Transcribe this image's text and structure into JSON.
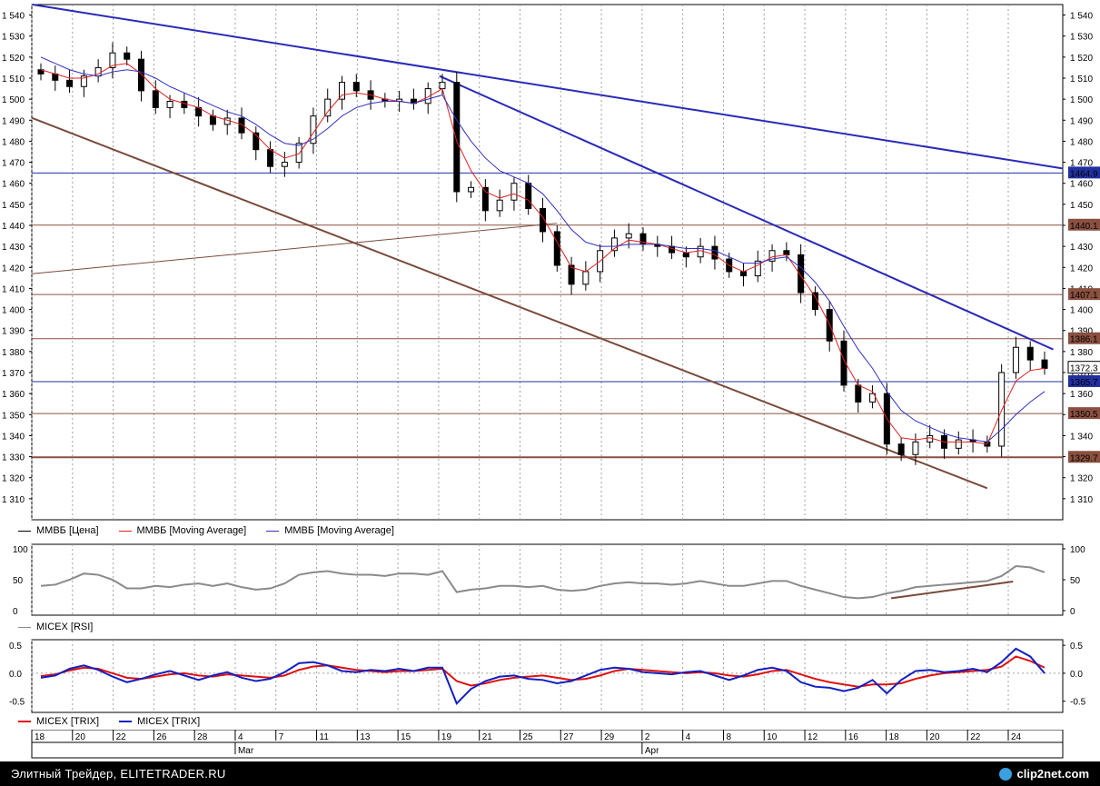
{
  "colors": {
    "price": "#000000",
    "ma_fast": "#e02020",
    "ma_slow": "#3030c0",
    "trend_blue": "#2a2ab8",
    "trend_brown": "#7a4a3a",
    "hline_blue": "#2030a0",
    "hline_brown": "#8a5040",
    "rsi": "#8a8a8a",
    "trix_red": "#e01010",
    "trix_blue": "#1020c0",
    "grid": "#a0a0a0"
  },
  "price_panel": {
    "legend": [
      {
        "label": "ММВБ [Цена]",
        "color": "#000000"
      },
      {
        "label": "ММВБ [Moving Average]",
        "color": "#e02020"
      },
      {
        "label": "ММВБ [Moving Average]",
        "color": "#3030c0"
      }
    ],
    "y_ticks": [
      "1 540",
      "1 530",
      "1 520",
      "1 510",
      "1 500",
      "1 490",
      "1 480",
      "1 470",
      "1 460",
      "1 450",
      "1 440",
      "1 430",
      "1 420",
      "1 410",
      "1 400",
      "1 390",
      "1 380",
      "1 370",
      "1 360",
      "1 350",
      "1 340",
      "1 330",
      "1 320",
      "1 310"
    ],
    "level_labels": [
      "1464.9",
      "1440.1",
      "1407.1",
      "1386.1",
      "1372.3",
      "1365.7",
      "1350.5",
      "1329.7"
    ]
  },
  "rsi_panel": {
    "legend": "MICEX [RSI]",
    "y_ticks": [
      "100",
      "50",
      "0"
    ]
  },
  "trix_panel": {
    "legend": [
      "MICEX [TRIX]",
      "MICEX [TRIX]"
    ],
    "y_ticks": [
      "0.5",
      "0.0",
      "-0.5"
    ]
  },
  "x_axis": {
    "day_labels": [
      "18",
      "20",
      "22",
      "26",
      "28",
      "4",
      "7",
      "11",
      "13",
      "15",
      "19",
      "21",
      "25",
      "27",
      "29",
      "2",
      "4",
      "8",
      "10",
      "12",
      "16",
      "18",
      "20",
      "22",
      "24"
    ],
    "month_labels": [
      "Mar",
      "Apr"
    ]
  },
  "footer": {
    "credit": "Элитный Трейдер, ELITETRADER.RU",
    "logo": "clip2net.com"
  },
  "chart_data": [
    {
      "type": "candlestick",
      "title": "",
      "ylim": [
        1300,
        1545
      ],
      "x_labels": [
        "18",
        "20",
        "22",
        "26",
        "28",
        "4",
        "7",
        "11",
        "13",
        "15",
        "19",
        "21",
        "25",
        "27",
        "29",
        "2",
        "4",
        "8",
        "10",
        "12",
        "16",
        "18",
        "20",
        "22",
        "24"
      ],
      "months": [
        "Mar",
        "Apr"
      ],
      "series": [
        {
          "name": "ММВБ [Цена]",
          "values": [
            1512,
            1509,
            1506,
            1511,
            1515,
            1522,
            1519,
            1504,
            1496,
            1499,
            1496,
            1492,
            1488,
            1491,
            1484,
            1476,
            1468,
            1470,
            1479,
            1492,
            1500,
            1508,
            1504,
            1500,
            1499,
            1500,
            1498,
            1505,
            1508,
            1456,
            1458,
            1447,
            1452,
            1460,
            1448,
            1437,
            1421,
            1412,
            1418,
            1428,
            1434,
            1436,
            1431,
            1430,
            1427,
            1425,
            1430,
            1424,
            1418,
            1416,
            1423,
            1428,
            1426,
            1408,
            1400,
            1385,
            1364,
            1356,
            1360,
            1336,
            1331,
            1337,
            1340,
            1334,
            1338,
            1337,
            1335,
            1370,
            1382,
            1376,
            1372
          ]
        },
        {
          "name": "ММВБ [Moving Average]",
          "values": [
            1514,
            1512,
            1510,
            1510,
            1512,
            1516,
            1517,
            1512,
            1505,
            1500,
            1498,
            1496,
            1492,
            1490,
            1488,
            1483,
            1476,
            1472,
            1474,
            1484,
            1494,
            1502,
            1503,
            1502,
            1500,
            1499,
            1498,
            1501,
            1505,
            1480,
            1466,
            1456,
            1453,
            1455,
            1452,
            1444,
            1432,
            1420,
            1418,
            1423,
            1429,
            1433,
            1432,
            1431,
            1429,
            1427,
            1428,
            1426,
            1421,
            1418,
            1421,
            1425,
            1426,
            1416,
            1406,
            1393,
            1376,
            1364,
            1361,
            1348,
            1339,
            1338,
            1339,
            1337,
            1337,
            1337,
            1336,
            1352,
            1366,
            1371,
            1372
          ]
        },
        {
          "name": "ММВБ [Moving Average]",
          "values": [
            1520,
            1517,
            1514,
            1512,
            1511,
            1513,
            1514,
            1513,
            1510,
            1506,
            1503,
            1500,
            1497,
            1494,
            1492,
            1488,
            1483,
            1479,
            1478,
            1481,
            1486,
            1492,
            1496,
            1498,
            1499,
            1499,
            1498,
            1500,
            1502,
            1490,
            1480,
            1472,
            1466,
            1463,
            1460,
            1455,
            1447,
            1438,
            1432,
            1430,
            1430,
            1431,
            1431,
            1431,
            1430,
            1429,
            1429,
            1428,
            1425,
            1422,
            1422,
            1424,
            1425,
            1420,
            1413,
            1404,
            1392,
            1381,
            1372,
            1361,
            1352,
            1347,
            1344,
            1341,
            1339,
            1338,
            1337,
            1343,
            1350,
            1356,
            1361
          ]
        }
      ]
    },
    {
      "type": "line",
      "title": "",
      "ylim": [
        0,
        100
      ],
      "series": [
        {
          "name": "MICEX [RSI]",
          "values": [
            40,
            42,
            50,
            60,
            58,
            50,
            36,
            36,
            40,
            38,
            42,
            44,
            40,
            44,
            38,
            34,
            36,
            44,
            58,
            62,
            64,
            60,
            58,
            58,
            56,
            60,
            60,
            58,
            64,
            30,
            34,
            36,
            40,
            40,
            38,
            40,
            34,
            32,
            34,
            40,
            44,
            46,
            44,
            44,
            42,
            44,
            48,
            44,
            40,
            40,
            44,
            48,
            48,
            40,
            34,
            28,
            22,
            20,
            22,
            28,
            32,
            38,
            40,
            42,
            44,
            46,
            48,
            56,
            72,
            70,
            62
          ]
        }
      ]
    },
    {
      "type": "line",
      "title": "",
      "ylim": [
        -0.7,
        0.6
      ],
      "series": [
        {
          "name": "MICEX [TRIX]",
          "values": [
            -0.05,
            -0.02,
            0.05,
            0.1,
            0.08,
            0.0,
            -0.08,
            -0.1,
            -0.06,
            -0.02,
            0.0,
            -0.04,
            -0.06,
            -0.02,
            -0.04,
            -0.06,
            -0.08,
            -0.04,
            0.06,
            0.12,
            0.14,
            0.1,
            0.06,
            0.04,
            0.02,
            0.04,
            0.04,
            0.06,
            0.08,
            -0.14,
            -0.22,
            -0.18,
            -0.12,
            -0.08,
            -0.06,
            -0.04,
            -0.08,
            -0.12,
            -0.1,
            -0.04,
            0.04,
            0.08,
            0.06,
            0.04,
            0.02,
            0.0,
            0.02,
            0.0,
            -0.04,
            -0.06,
            -0.02,
            0.04,
            0.06,
            -0.02,
            -0.1,
            -0.16,
            -0.2,
            -0.24,
            -0.2,
            -0.2,
            -0.18,
            -0.1,
            -0.04,
            0.0,
            0.02,
            0.04,
            0.06,
            0.12,
            0.3,
            0.22,
            0.1
          ]
        },
        {
          "name": "MICEX [TRIX]",
          "values": [
            -0.08,
            -0.04,
            0.08,
            0.14,
            0.06,
            -0.06,
            -0.16,
            -0.1,
            -0.02,
            0.04,
            -0.04,
            -0.12,
            -0.04,
            0.02,
            -0.08,
            -0.14,
            -0.1,
            0.02,
            0.18,
            0.2,
            0.14,
            0.04,
            0.02,
            0.06,
            0.04,
            0.08,
            0.04,
            0.1,
            0.1,
            -0.54,
            -0.28,
            -0.14,
            -0.06,
            -0.04,
            -0.1,
            -0.12,
            -0.18,
            -0.14,
            -0.04,
            0.06,
            0.1,
            0.08,
            0.02,
            0.0,
            -0.02,
            0.02,
            0.04,
            -0.04,
            -0.12,
            -0.04,
            0.06,
            0.1,
            0.04,
            -0.16,
            -0.24,
            -0.26,
            -0.32,
            -0.26,
            -0.12,
            -0.36,
            -0.12,
            0.04,
            0.06,
            0.02,
            0.04,
            0.08,
            0.02,
            0.2,
            0.44,
            0.3,
            0.0
          ]
        }
      ]
    }
  ]
}
